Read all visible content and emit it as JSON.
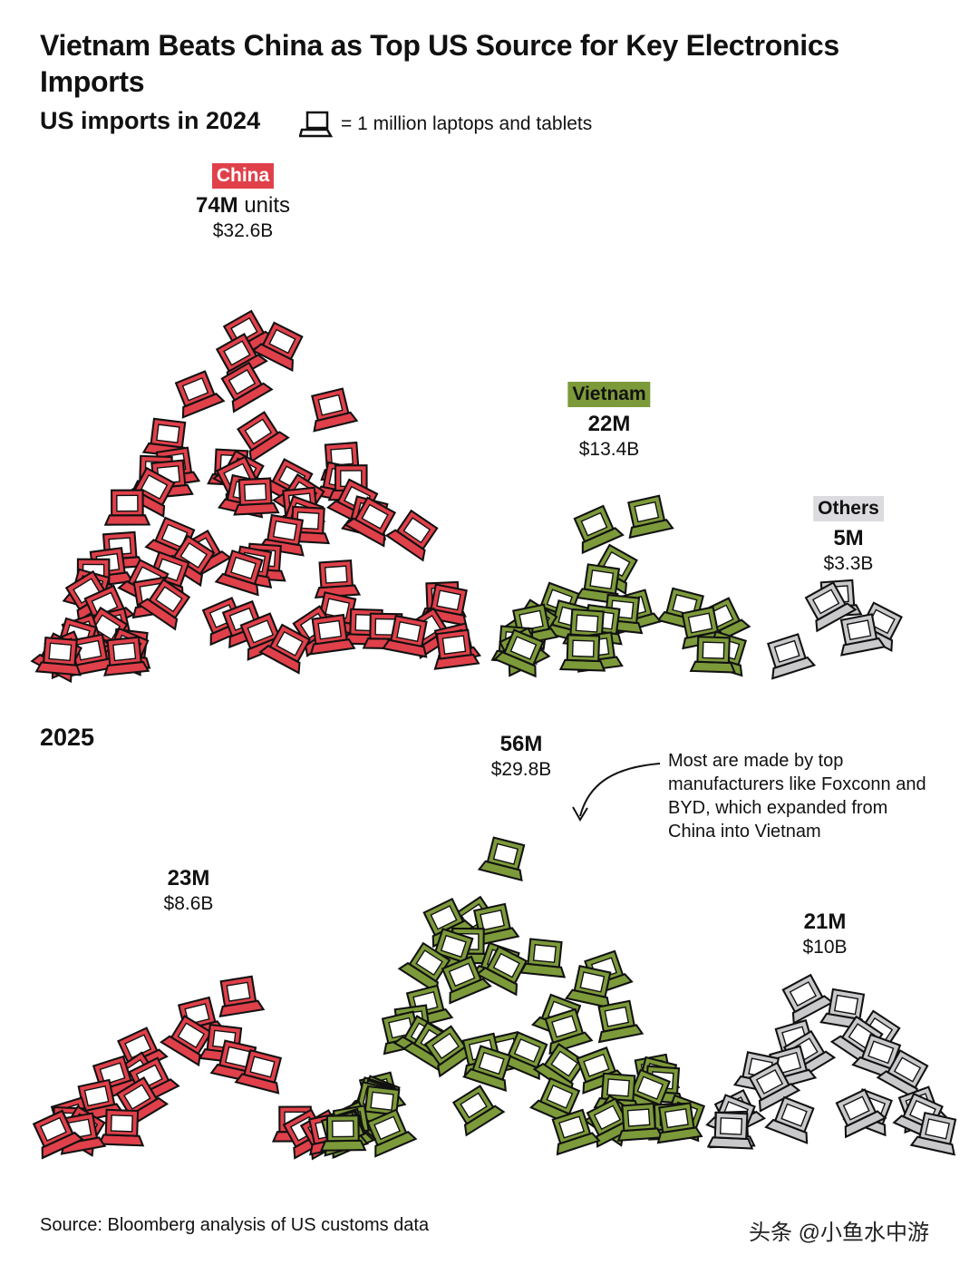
{
  "title": "Vietnam Beats China as Top US Source for Key Electronics Imports",
  "subtitle": "US imports in 2024",
  "legend_text": "= 1 million laptops and tablets",
  "year_2025_label": "2025",
  "colors": {
    "china": "#e0404a",
    "vietnam": "#7d9a3a",
    "others": "#c9c9cc",
    "others_tag": "#dcdce0"
  },
  "chart_data": [
    {
      "type": "pictogram",
      "title": "US imports in 2024",
      "unit": "1 million laptops and tablets",
      "series": [
        {
          "name": "China",
          "units_millions": 74,
          "units_label": "74M",
          "units_suffix": "units",
          "value_label": "$32.6B",
          "value_billion_usd": 32.6
        },
        {
          "name": "Vietnam",
          "units_millions": 22,
          "units_label": "22M",
          "units_suffix": "",
          "value_label": "$13.4B",
          "value_billion_usd": 13.4
        },
        {
          "name": "Others",
          "units_millions": 5,
          "units_label": "5M",
          "units_suffix": "",
          "value_label": "$3.3B",
          "value_billion_usd": 3.3
        }
      ]
    },
    {
      "type": "pictogram",
      "title": "2025",
      "unit": "1 million laptops and tablets",
      "series": [
        {
          "name": "China",
          "units_millions": 23,
          "units_label": "23M",
          "units_suffix": "",
          "value_label": "$8.6B",
          "value_billion_usd": 8.6
        },
        {
          "name": "Vietnam",
          "units_millions": 56,
          "units_label": "56M",
          "units_suffix": "",
          "value_label": "$29.8B",
          "value_billion_usd": 29.8
        },
        {
          "name": "Others",
          "units_millions": 21,
          "units_label": "21M",
          "units_suffix": "",
          "value_label": "$10B",
          "value_billion_usd": 10
        }
      ],
      "annotation": "Most are made by top manufacturers like Foxconn and BYD, which expanded from China into Vietnam"
    }
  ],
  "source": "Source: Bloomberg analysis of US customs data",
  "watermark": "头条 @小鱼水中游"
}
